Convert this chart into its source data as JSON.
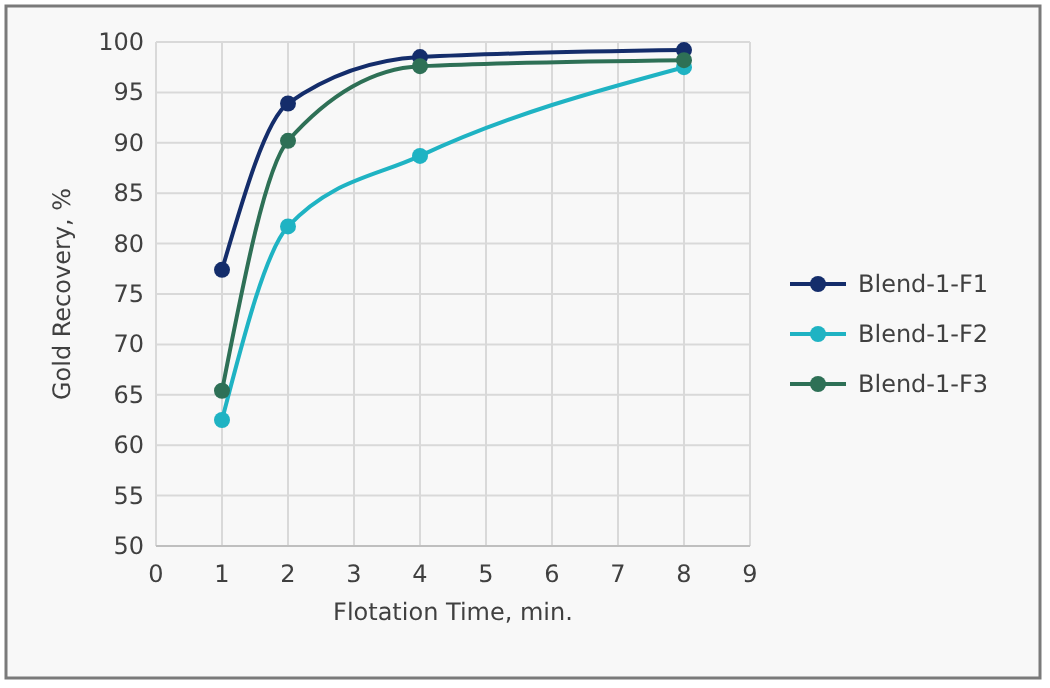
{
  "chart_data": {
    "type": "line",
    "xlabel": "Flotation Time, min.",
    "ylabel": "Gold Recovery, %",
    "x": [
      1,
      2,
      4,
      8
    ],
    "series": [
      {
        "name": "Blend-1-F1",
        "color": "#142d6b",
        "values": [
          77.4,
          93.9,
          98.5,
          99.2
        ]
      },
      {
        "name": "Blend-1-F2",
        "color": "#1fb3c3",
        "values": [
          62.5,
          81.7,
          88.7,
          97.5
        ]
      },
      {
        "name": "Blend-1-F3",
        "color": "#2e7056",
        "values": [
          65.4,
          90.2,
          97.6,
          98.2
        ]
      }
    ],
    "xlim": [
      0,
      9
    ],
    "xticks": [
      0,
      1,
      2,
      3,
      4,
      5,
      6,
      7,
      8,
      9
    ],
    "ylim": [
      50,
      100
    ],
    "yticks": [
      50,
      55,
      60,
      65,
      70,
      75,
      80,
      85,
      90,
      95,
      100
    ],
    "grid": true,
    "legend": "right",
    "marker": "circle",
    "line_style": "solid"
  }
}
